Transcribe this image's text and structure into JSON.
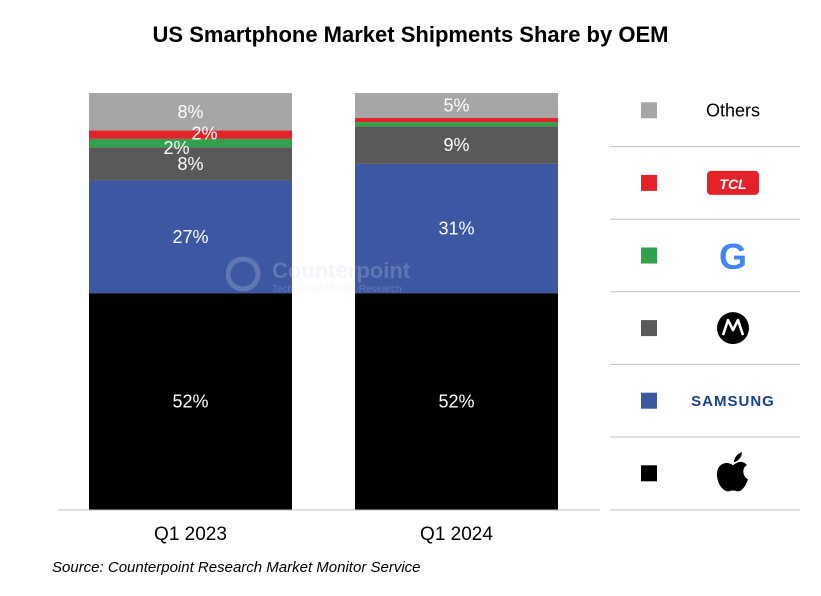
{
  "chart_data": {
    "type": "bar",
    "stacked": true,
    "title": "US Smartphone Market Shipments Share by OEM",
    "categories": [
      "Q1 2023",
      "Q1 2024"
    ],
    "ylim": [
      0,
      100
    ],
    "unit": "%",
    "series": [
      {
        "name": "Apple",
        "legend_key": "apple",
        "color": "#000000",
        "text_color": "#ffffff",
        "values": [
          52,
          52
        ],
        "labels": [
          "52%",
          "52%"
        ]
      },
      {
        "name": "Samsung",
        "legend_key": "samsung",
        "color": "#3d58a3",
        "text_color": "#ffffff",
        "values": [
          27,
          31
        ],
        "labels": [
          "27%",
          "31%"
        ]
      },
      {
        "name": "Motorola",
        "legend_key": "motorola",
        "color": "#595959",
        "text_color": "#ffffff",
        "values": [
          8,
          9
        ],
        "labels": [
          "8%",
          "9%"
        ]
      },
      {
        "name": "Google",
        "legend_key": "google",
        "color": "#31a24c",
        "text_color": "#ffffff",
        "values": [
          2,
          1
        ],
        "labels": [
          "2%",
          ""
        ]
      },
      {
        "name": "TCL",
        "legend_key": "tcl",
        "color": "#e3232a",
        "text_color": "#ffffff",
        "values": [
          2,
          1
        ],
        "labels": [
          "2%",
          ""
        ]
      },
      {
        "name": "Others",
        "legend_key": "others",
        "color": "#a6a6a6",
        "text_color": "#ffffff",
        "values": [
          8,
          5
        ],
        "labels": [
          "8%",
          "5%"
        ]
      }
    ],
    "legend": {
      "placement": "right",
      "items_top_to_bottom": [
        {
          "key": "others",
          "text": "Others"
        },
        {
          "key": "tcl",
          "logo_text": "TCL"
        },
        {
          "key": "google",
          "logo_text": "G"
        },
        {
          "key": "motorola",
          "logo_text": "M"
        },
        {
          "key": "samsung",
          "logo_text": "SAMSUNG"
        },
        {
          "key": "apple",
          "logo_text": ""
        }
      ]
    }
  },
  "watermark": {
    "text": "Counterpoint",
    "subtext": "Technology Market Research"
  },
  "source": "Source: Counterpoint Research Market Monitor Service"
}
